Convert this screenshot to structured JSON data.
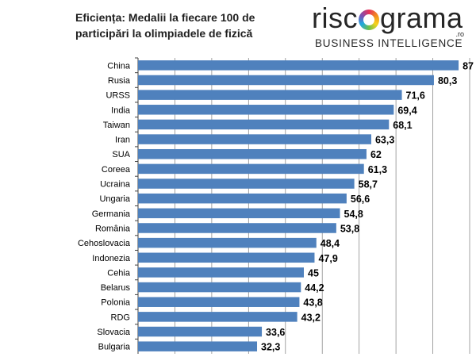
{
  "header": {
    "title": "Eficiența: Medalii la fiecare 100 de participări la olimpiadele de fizică"
  },
  "logo": {
    "word_part1": "risc",
    "word_part2": "grama",
    "tld": ".ro",
    "tagline": "BUSINESS INTELLIGENCE",
    "ring_colors": [
      "#e6315b",
      "#f28c1c",
      "#f6d21c",
      "#6cc04a",
      "#1fa9e1",
      "#7a4fb5"
    ]
  },
  "chart_data": {
    "type": "bar",
    "orientation": "horizontal",
    "title": "Eficiența: Medalii la fiecare 100 de participări la olimpiadele de fizică",
    "categories": [
      "China",
      "Rusia",
      "URSS",
      "India",
      "Taiwan",
      "Iran",
      "SUA",
      "Coreea",
      "Ucraina",
      "Ungaria",
      "Germania",
      "România",
      "Cehoslovacia",
      "Indonezia",
      "Cehia",
      "Belarus",
      "Polonia",
      "RDG",
      "Slovacia",
      "Bulgaria"
    ],
    "values": [
      87,
      80.3,
      71.6,
      69.4,
      68.1,
      63.3,
      62,
      61.3,
      58.7,
      56.6,
      54.8,
      53.8,
      48.4,
      47.9,
      45,
      44.2,
      43.8,
      43.2,
      33.6,
      32.3
    ],
    "value_labels": [
      "87",
      "80,3",
      "71,6",
      "69,4",
      "68,1",
      "63,3",
      "62",
      "61,3",
      "58,7",
      "56,6",
      "54,8",
      "53,8",
      "48,4",
      "47,9",
      "45",
      "44,2",
      "43,8",
      "43,2",
      "33,6",
      "32,3"
    ],
    "xlim": [
      0,
      90
    ],
    "grid": "vertical",
    "bar_color": "#4f81bd",
    "grid_color": "#8c8c8c"
  }
}
